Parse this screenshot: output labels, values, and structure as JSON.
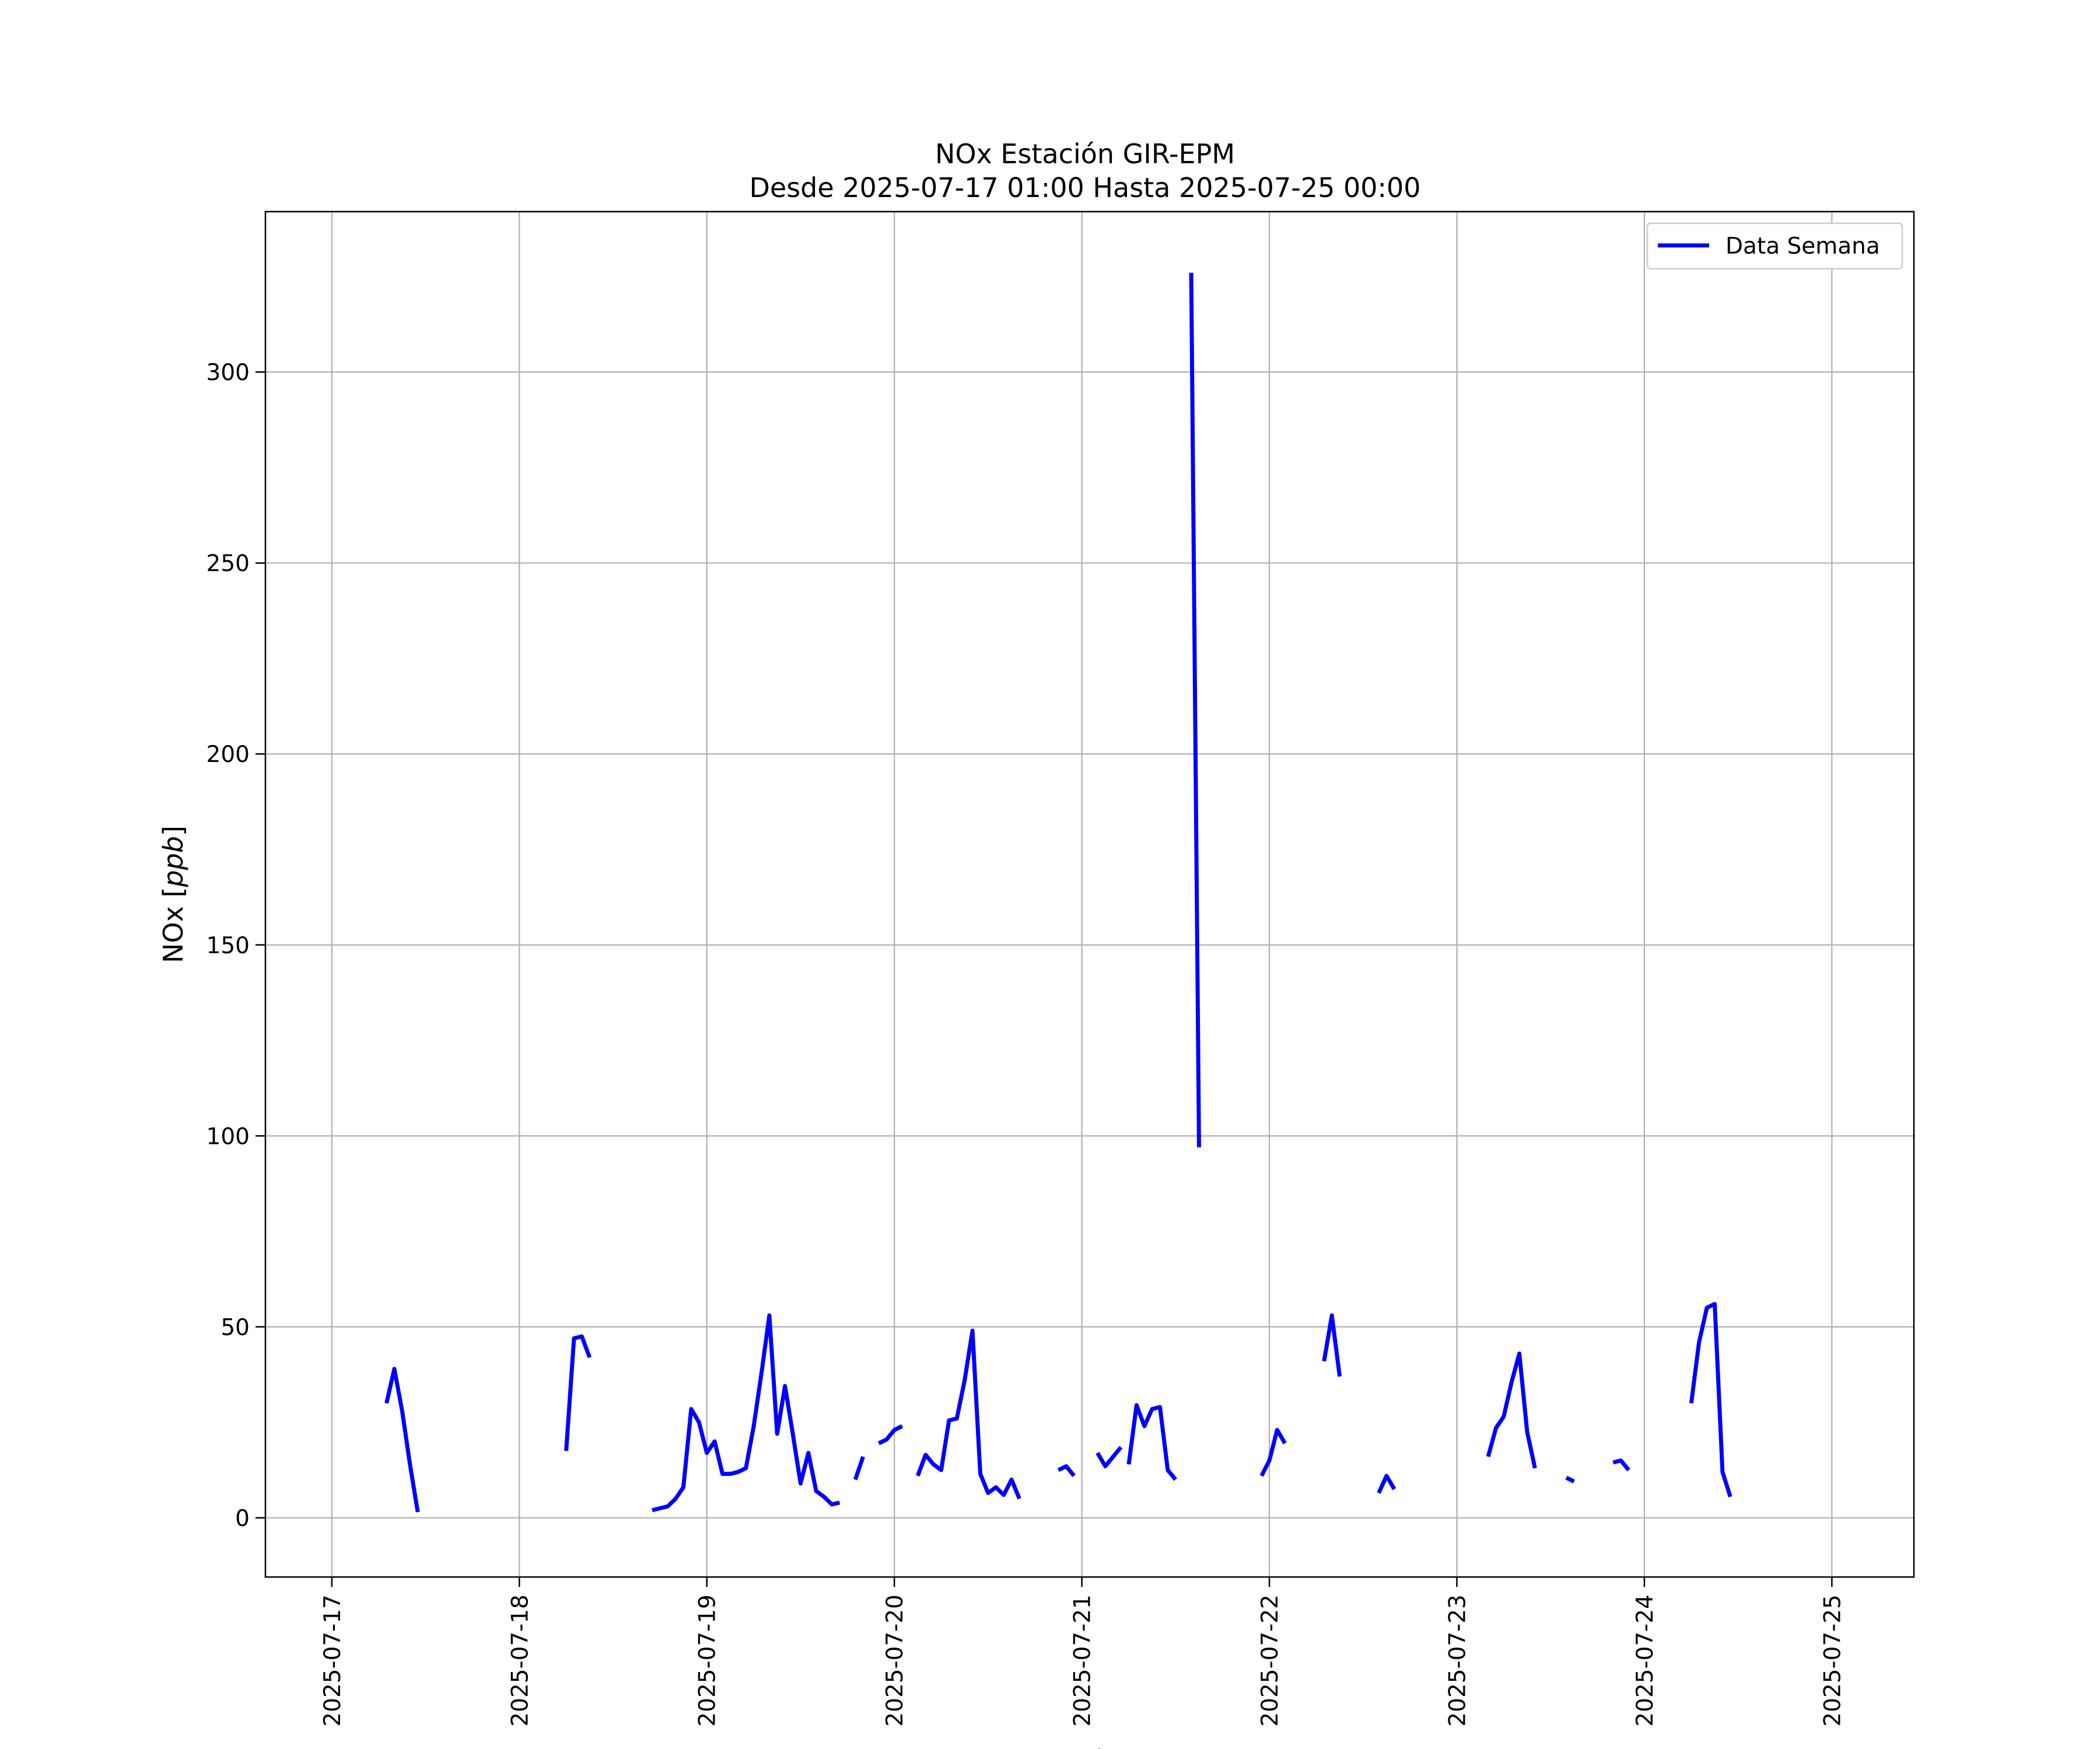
{
  "chart_data": {
    "type": "line",
    "title": "NOx Estación GIR-EPM",
    "subtitle": "Desde 2025-07-17 01:00 Hasta 2025-07-25 00:00",
    "xlabel": "Fecha",
    "ylabel": "NOx [ppb]",
    "ylabel_plain": "NOx [",
    "ylabel_italic": "ppb",
    "ylabel_close": "]",
    "xlim": [
      "2025-07-16 15:30",
      "2025-07-25 10:30"
    ],
    "ylim": [
      -15.5,
      342
    ],
    "x_ticks": [
      "2025-07-17",
      "2025-07-18",
      "2025-07-19",
      "2025-07-20",
      "2025-07-21",
      "2025-07-22",
      "2025-07-23",
      "2025-07-24",
      "2025-07-25"
    ],
    "y_ticks": [
      0,
      50,
      100,
      150,
      200,
      250,
      300
    ],
    "grid": true,
    "legend": {
      "position": "top-right",
      "entries": [
        "Data Semana"
      ]
    },
    "colors": {
      "series": "#0000ff"
    },
    "series": [
      {
        "name": "Data Semana",
        "segments": [
          [
            [
              "2025-07-17 07:00",
              30
            ],
            [
              "2025-07-17 08:00",
              39
            ],
            [
              "2025-07-17 09:00",
              28
            ],
            [
              "2025-07-17 10:00",
              14
            ],
            [
              "2025-07-17 11:00",
              1.5
            ]
          ],
          [
            [
              "2025-07-18 06:00",
              17.5
            ],
            [
              "2025-07-18 07:00",
              47
            ],
            [
              "2025-07-18 08:00",
              47.5
            ],
            [
              "2025-07-18 09:00",
              42
            ]
          ],
          [
            [
              "2025-07-18 17:00",
              2
            ],
            [
              "2025-07-18 18:00",
              2.5
            ],
            [
              "2025-07-18 19:00",
              3
            ],
            [
              "2025-07-18 20:00",
              5
            ],
            [
              "2025-07-18 21:00",
              8
            ],
            [
              "2025-07-18 22:00",
              28.5
            ],
            [
              "2025-07-18 23:00",
              25
            ],
            [
              "2025-07-19 00:00",
              17
            ],
            [
              "2025-07-19 01:00",
              20
            ],
            [
              "2025-07-19 02:00",
              11.5
            ],
            [
              "2025-07-19 03:00",
              11.5
            ],
            [
              "2025-07-19 04:00",
              12
            ],
            [
              "2025-07-19 05:00",
              13
            ],
            [
              "2025-07-19 06:00",
              24
            ],
            [
              "2025-07-19 07:00",
              38
            ],
            [
              "2025-07-19 08:00",
              53
            ],
            [
              "2025-07-19 09:00",
              22
            ],
            [
              "2025-07-19 10:00",
              34.5
            ],
            [
              "2025-07-19 11:00",
              22
            ],
            [
              "2025-07-19 12:00",
              9
            ],
            [
              "2025-07-19 13:00",
              17
            ],
            [
              "2025-07-19 14:00",
              7
            ],
            [
              "2025-07-19 15:00",
              5.5
            ],
            [
              "2025-07-19 16:00",
              3.5
            ],
            [
              "2025-07-19 17:00",
              4
            ]
          ],
          [
            [
              "2025-07-19 19:00",
              10
            ],
            [
              "2025-07-19 20:00",
              16
            ]
          ],
          [
            [
              "2025-07-19 22:00",
              19.5
            ],
            [
              "2025-07-19 23:00",
              20.5
            ],
            [
              "2025-07-20 00:00",
              23
            ],
            [
              "2025-07-20 01:00",
              24
            ]
          ],
          [
            [
              "2025-07-20 03:00",
              11
            ],
            [
              "2025-07-20 04:00",
              16.5
            ],
            [
              "2025-07-20 05:00",
              14
            ],
            [
              "2025-07-20 06:00",
              12.5
            ],
            [
              "2025-07-20 07:00",
              25.5
            ],
            [
              "2025-07-20 08:00",
              26
            ],
            [
              "2025-07-20 09:00",
              36
            ],
            [
              "2025-07-20 10:00",
              49
            ],
            [
              "2025-07-20 11:00",
              11.5
            ],
            [
              "2025-07-20 12:00",
              6.5
            ],
            [
              "2025-07-20 13:00",
              8
            ],
            [
              "2025-07-20 14:00",
              6
            ],
            [
              "2025-07-20 15:00",
              10
            ],
            [
              "2025-07-20 16:00",
              5
            ]
          ],
          [
            [
              "2025-07-20 21:00",
              12.5
            ],
            [
              "2025-07-20 22:00",
              13.5
            ],
            [
              "2025-07-20 23:00",
              11
            ]
          ],
          [
            [
              "2025-07-21 02:00",
              17
            ],
            [
              "2025-07-21 03:00",
              13.5
            ],
            [
              "2025-07-21 04:00",
              16
            ],
            [
              "2025-07-21 05:00",
              18.5
            ]
          ],
          [
            [
              "2025-07-21 06:00",
              14
            ],
            [
              "2025-07-21 07:00",
              29.5
            ],
            [
              "2025-07-21 08:00",
              24
            ],
            [
              "2025-07-21 09:00",
              28.5
            ],
            [
              "2025-07-21 10:00",
              29
            ],
            [
              "2025-07-21 11:00",
              12.5
            ],
            [
              "2025-07-21 12:00",
              10
            ]
          ],
          [
            [
              "2025-07-21 14:00",
              326
            ],
            [
              "2025-07-21 15:00",
              97
            ]
          ],
          [
            [
              "2025-07-21 23:00",
              11
            ],
            [
              "2025-07-22 00:00",
              15
            ],
            [
              "2025-07-22 01:00",
              23
            ],
            [
              "2025-07-22 02:00",
              19.5
            ]
          ],
          [
            [
              "2025-07-22 07:00",
              41
            ],
            [
              "2025-07-22 08:00",
              53
            ],
            [
              "2025-07-22 09:00",
              37
            ]
          ],
          [
            [
              "2025-07-22 14:00",
              6.5
            ],
            [
              "2025-07-22 15:00",
              11
            ],
            [
              "2025-07-22 16:00",
              7.5
            ]
          ],
          [
            [
              "2025-07-23 04:00",
              16
            ],
            [
              "2025-07-23 05:00",
              23.5
            ],
            [
              "2025-07-23 06:00",
              26.5
            ],
            [
              "2025-07-23 07:00",
              35.5
            ],
            [
              "2025-07-23 08:00",
              43
            ],
            [
              "2025-07-23 09:00",
              22.5
            ],
            [
              "2025-07-23 10:00",
              13
            ]
          ],
          [
            [
              "2025-07-23 14:00",
              10.5
            ],
            [
              "2025-07-23 15:00",
              9.5
            ]
          ],
          [
            [
              "2025-07-23 20:00",
              14.5
            ],
            [
              "2025-07-23 21:00",
              15
            ],
            [
              "2025-07-23 22:00",
              12.5
            ]
          ],
          [
            [
              "2025-07-24 06:00",
              30
            ],
            [
              "2025-07-24 07:00",
              46
            ],
            [
              "2025-07-24 08:00",
              55
            ],
            [
              "2025-07-24 09:00",
              56
            ],
            [
              "2025-07-24 10:00",
              12
            ],
            [
              "2025-07-24 11:00",
              5.5
            ]
          ]
        ]
      }
    ]
  }
}
